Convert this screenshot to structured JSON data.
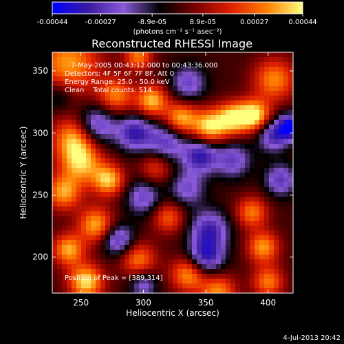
{
  "chart_data": {
    "type": "heatmap",
    "title": "Reconstructed RHESSI Image",
    "xlabel": "Heliocentric X (arcsec)",
    "ylabel": "Heliocentric Y (arcsec)",
    "xlim": [
      227,
      420
    ],
    "ylim": [
      171,
      365
    ],
    "x_ticks": [
      250,
      300,
      350,
      400
    ],
    "y_ticks": [
      200,
      250,
      300,
      350
    ],
    "colorbar": {
      "range": [
        -0.00044,
        0.00044
      ],
      "tick_values": [
        -0.00044,
        -0.00027,
        -8.9e-05,
        8.9e-05,
        0.00027,
        0.00044
      ],
      "tick_labels": [
        "-0.00044",
        "-0.00027",
        "-8.9e-05",
        "8.9e-05",
        "0.00027",
        "0.00044"
      ],
      "unit_label": "(photons cm⁻² s⁻¹ asec⁻²)",
      "colors": [
        "#0000ff",
        "#3a1aa0",
        "#8a5ad8",
        "#000000",
        "#7a0000",
        "#e02000",
        "#ff8000",
        "#ffff80"
      ]
    },
    "annotations": {
      "time_range": "7-May-2005 00:43:12.000 to 00:43:36.000",
      "detectors": "Detectors: 4F 5F 6F 7F 8F, Att 0",
      "energy_range": "Energy Range: 25.0 - 50.0 keV",
      "clean_counts": "Clean    Total counts: 514.",
      "peak": "Position of Peak = [389,314]"
    },
    "peak_position": [
      389,
      314
    ],
    "blobs": [
      {
        "x": 389,
        "y": 314,
        "sigma": 9,
        "amp": 0.00044
      },
      {
        "x": 240,
        "y": 356,
        "sigma": 18,
        "amp": 0.00034
      },
      {
        "x": 278,
        "y": 330,
        "sigma": 10,
        "amp": 0.0003
      },
      {
        "x": 307,
        "y": 326,
        "sigma": 9,
        "amp": 0.00038
      },
      {
        "x": 330,
        "y": 312,
        "sigma": 9,
        "amp": 0.00036
      },
      {
        "x": 353,
        "y": 305,
        "sigma": 10,
        "amp": 0.00042
      },
      {
        "x": 372,
        "y": 312,
        "sigma": 9,
        "amp": 0.0004
      },
      {
        "x": 405,
        "y": 343,
        "sigma": 12,
        "amp": 0.00032
      },
      {
        "x": 296,
        "y": 362,
        "sigma": 8,
        "amp": 0.0003
      },
      {
        "x": 244,
        "y": 296,
        "sigma": 12,
        "amp": 0.00034
      },
      {
        "x": 250,
        "y": 276,
        "sigma": 12,
        "amp": 0.00036
      },
      {
        "x": 272,
        "y": 262,
        "sigma": 9,
        "amp": 0.00038
      },
      {
        "x": 310,
        "y": 272,
        "sigma": 9,
        "amp": 0.00022
      },
      {
        "x": 236,
        "y": 252,
        "sigma": 10,
        "amp": 0.00034
      },
      {
        "x": 262,
        "y": 226,
        "sigma": 10,
        "amp": 0.00036
      },
      {
        "x": 320,
        "y": 232,
        "sigma": 9,
        "amp": 0.00026
      },
      {
        "x": 387,
        "y": 236,
        "sigma": 9,
        "amp": 0.0003
      },
      {
        "x": 396,
        "y": 208,
        "sigma": 9,
        "amp": 0.00034
      },
      {
        "x": 240,
        "y": 206,
        "sigma": 9,
        "amp": 0.00036
      },
      {
        "x": 254,
        "y": 180,
        "sigma": 10,
        "amp": 0.00042
      },
      {
        "x": 296,
        "y": 198,
        "sigma": 10,
        "amp": 0.0003
      },
      {
        "x": 336,
        "y": 186,
        "sigma": 10,
        "amp": 0.00034
      },
      {
        "x": 360,
        "y": 172,
        "sigma": 10,
        "amp": 0.00032
      },
      {
        "x": 400,
        "y": 180,
        "sigma": 9,
        "amp": 0.0003
      },
      {
        "x": 262,
        "y": 306,
        "sigma": 11,
        "amp": -0.0003
      },
      {
        "x": 293,
        "y": 300,
        "sigma": 10,
        "amp": -0.00032
      },
      {
        "x": 318,
        "y": 292,
        "sigma": 11,
        "amp": -0.00026
      },
      {
        "x": 346,
        "y": 282,
        "sigma": 10,
        "amp": -0.00034
      },
      {
        "x": 372,
        "y": 278,
        "sigma": 10,
        "amp": -0.00024
      },
      {
        "x": 404,
        "y": 298,
        "sigma": 9,
        "amp": -0.0003
      },
      {
        "x": 418,
        "y": 305,
        "sigma": 7,
        "amp": -0.00044
      },
      {
        "x": 336,
        "y": 340,
        "sigma": 10,
        "amp": -0.00024
      },
      {
        "x": 300,
        "y": 248,
        "sigma": 10,
        "amp": -0.00024
      },
      {
        "x": 335,
        "y": 255,
        "sigma": 10,
        "amp": -0.00022
      },
      {
        "x": 280,
        "y": 214,
        "sigma": 9,
        "amp": -0.0003
      },
      {
        "x": 353,
        "y": 222,
        "sigma": 11,
        "amp": -0.0003
      },
      {
        "x": 350,
        "y": 200,
        "sigma": 10,
        "amp": -0.00034
      },
      {
        "x": 410,
        "y": 262,
        "sigma": 9,
        "amp": -0.00026
      },
      {
        "x": 300,
        "y": 178,
        "sigma": 8,
        "amp": -0.00022
      },
      {
        "x": 232,
        "y": 330,
        "sigma": 9,
        "amp": -0.00016
      }
    ]
  },
  "footer": {
    "timestamp": "4-Jul-2013 20:42"
  }
}
